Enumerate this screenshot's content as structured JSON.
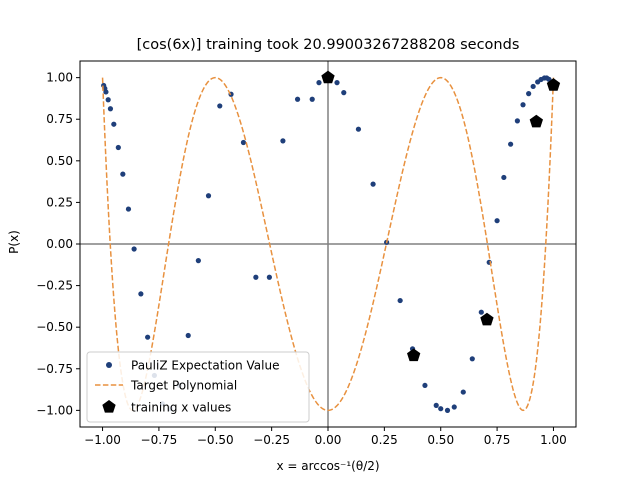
{
  "chart_data": {
    "type": "scatter",
    "title": "[cos(6x)] training took 20.99003267288208 seconds",
    "xlabel": "x = arccos⁻¹(θ/2)",
    "ylabel": "P(x)",
    "xlim": [
      -1.1,
      1.1
    ],
    "ylim": [
      -1.1,
      1.1
    ],
    "x_ticks": [
      -1.0,
      -0.75,
      -0.5,
      -0.25,
      0.0,
      0.25,
      0.5,
      0.75,
      1.0
    ],
    "x_tick_labels": [
      "−1.00",
      "−0.75",
      "−0.50",
      "−0.25",
      "0.00",
      "0.25",
      "0.50",
      "0.75",
      "1.00"
    ],
    "y_ticks": [
      -1.0,
      -0.75,
      -0.5,
      -0.25,
      0.0,
      0.25,
      0.5,
      0.75,
      1.0
    ],
    "y_tick_labels": [
      "−1.00",
      "−0.75",
      "−0.50",
      "−0.25",
      "0.00",
      "0.25",
      "0.50",
      "0.75",
      "1.00"
    ],
    "grid": false,
    "reference_lines": {
      "x": 0,
      "y": 0,
      "color": "#808080"
    },
    "legend_position": "lower-left",
    "series": [
      {
        "name": "PauliZ Expectation Value",
        "kind": "scatter",
        "color": "#1f3f7a",
        "x": [
          -0.995,
          -0.99,
          -0.985,
          -0.975,
          -0.965,
          -0.95,
          -0.93,
          -0.91,
          -0.885,
          -0.86,
          -0.83,
          -0.8,
          -0.77,
          -0.735,
          -0.7,
          -0.66,
          -0.62,
          -0.575,
          -0.53,
          -0.48,
          -0.43,
          -0.375,
          -0.32,
          -0.26,
          -0.2,
          -0.135,
          -0.07,
          -0.04,
          0.0,
          0.04,
          0.07,
          0.135,
          0.2,
          0.26,
          0.32,
          0.375,
          0.43,
          0.48,
          0.5,
          0.53,
          0.56,
          0.6,
          0.64,
          0.68,
          0.715,
          0.75,
          0.78,
          0.81,
          0.84,
          0.865,
          0.89,
          0.91,
          0.93,
          0.945,
          0.96,
          0.97,
          0.98,
          0.99,
          0.995
        ],
        "y": [
          0.953,
          0.935,
          0.914,
          0.867,
          0.813,
          0.72,
          0.58,
          0.42,
          0.21,
          -0.03,
          -0.3,
          -0.56,
          -0.79,
          -0.96,
          -0.99,
          -0.85,
          -0.55,
          -0.1,
          0.29,
          0.83,
          0.9,
          0.61,
          -0.2,
          -0.2,
          0.62,
          0.87,
          0.87,
          0.97,
          1.0,
          0.97,
          0.91,
          0.69,
          0.36,
          0.01,
          -0.34,
          -0.63,
          -0.85,
          -0.97,
          -0.99,
          -1.0,
          -0.98,
          -0.89,
          -0.69,
          -0.41,
          -0.11,
          0.14,
          0.4,
          0.6,
          0.74,
          0.837,
          0.904,
          0.947,
          0.974,
          0.989,
          0.998,
          0.998,
          0.99,
          0.973,
          0.962
        ]
      },
      {
        "name": "Target Polynomial",
        "kind": "line",
        "style": "dashed",
        "color": "#e8913f",
        "function": "cos(6*arccos(x))",
        "x_range": [
          -1.0,
          1.0
        ]
      },
      {
        "name": "training x values",
        "kind": "scatter",
        "marker": "pentagon",
        "color": "#000000",
        "x": [
          0.0,
          0.38,
          0.705,
          0.924,
          1.0
        ],
        "y": [
          1.0,
          -0.67,
          -0.455,
          0.735,
          0.955
        ]
      }
    ]
  }
}
